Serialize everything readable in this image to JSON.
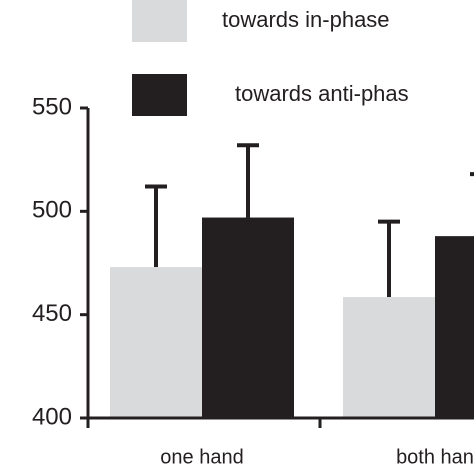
{
  "chart_data": {
    "type": "bar",
    "categories": [
      "one hand",
      "both han"
    ],
    "series": [
      {
        "name": "towards in-phase",
        "color": "#d9dadb",
        "values": [
          473,
          458.5
        ],
        "errors": [
          39,
          36.5
        ]
      },
      {
        "name": "towards anti-phas",
        "color": "#231f20",
        "values": [
          497,
          488
        ],
        "errors": [
          35,
          30
        ]
      }
    ],
    "ylim": [
      400,
      550
    ],
    "yticks": [
      400,
      450,
      500,
      550
    ]
  }
}
